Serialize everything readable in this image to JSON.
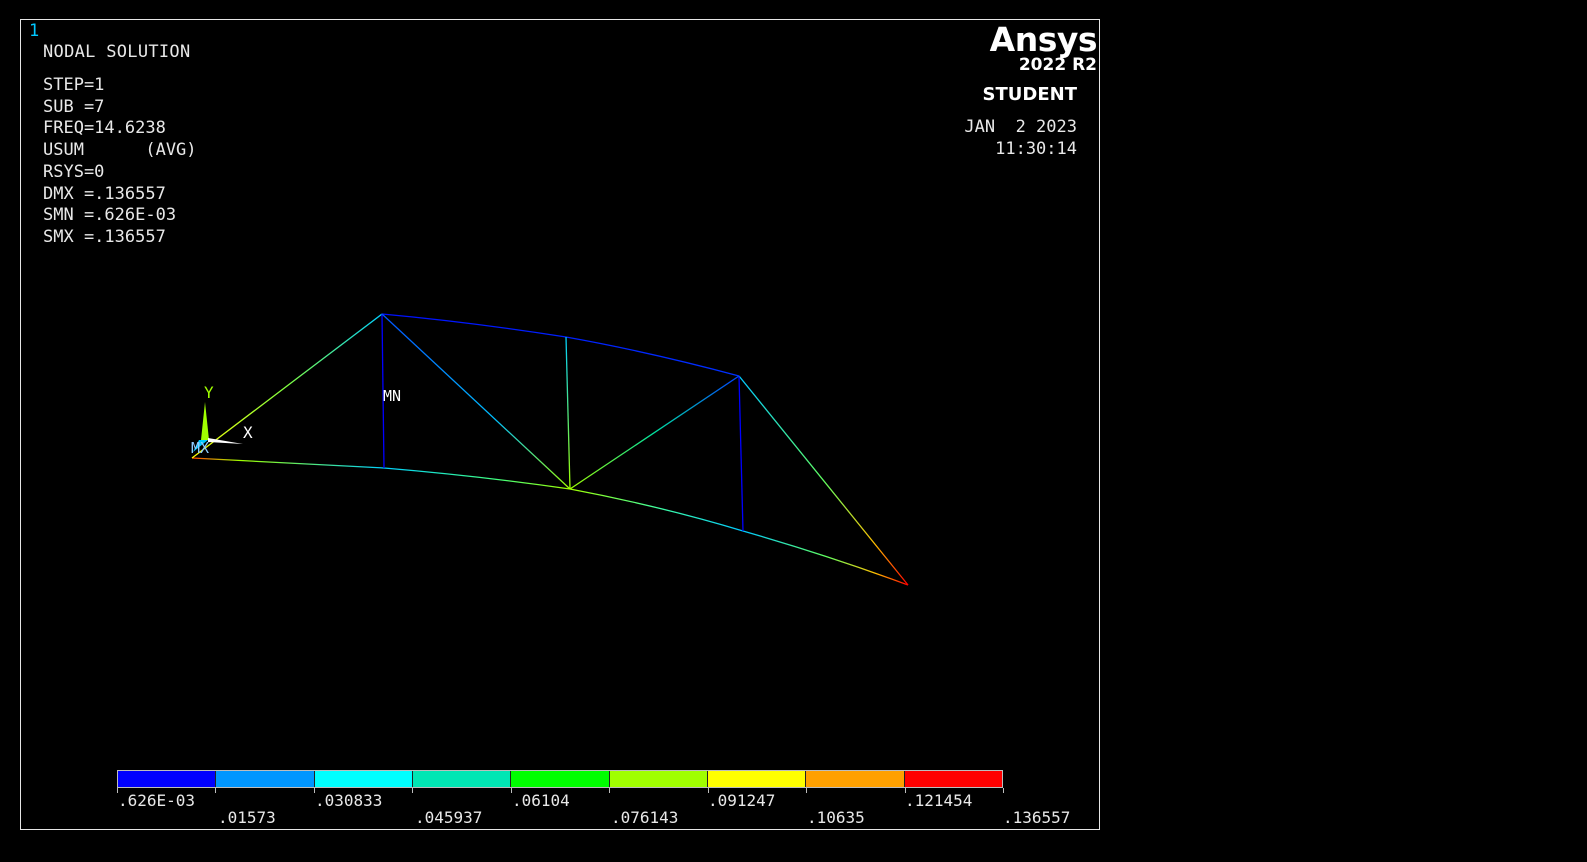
{
  "window_number": "1",
  "plot_title": "NODAL SOLUTION",
  "info_lines": [
    "STEP=1",
    "SUB =7",
    "FREQ=14.6238",
    "USUM      (AVG)",
    "RSYS=0",
    "DMX =.136557",
    "SMN =.626E-03",
    "SMX =.136557"
  ],
  "brand": {
    "logo": "Ansys",
    "version": "2022 R2",
    "edition": "STUDENT"
  },
  "timestamp": {
    "date": "JAN  2 2023",
    "time": "11:30:14"
  },
  "labels": {
    "min_marker": "MN",
    "max_marker": "MX",
    "axis_x": "X",
    "axis_y": "Y"
  },
  "legend": {
    "colors": [
      "#0000ff",
      "#0096ff",
      "#00ffff",
      "#00e6b4",
      "#00ff00",
      "#a0ff00",
      "#ffff00",
      "#ffa000",
      "#ff0000"
    ],
    "values": [
      ".626E-03",
      ".01573",
      ".030833",
      ".045937",
      ".06104",
      ".076143",
      ".091247",
      ".10635",
      ".121454",
      ".136557"
    ]
  }
}
